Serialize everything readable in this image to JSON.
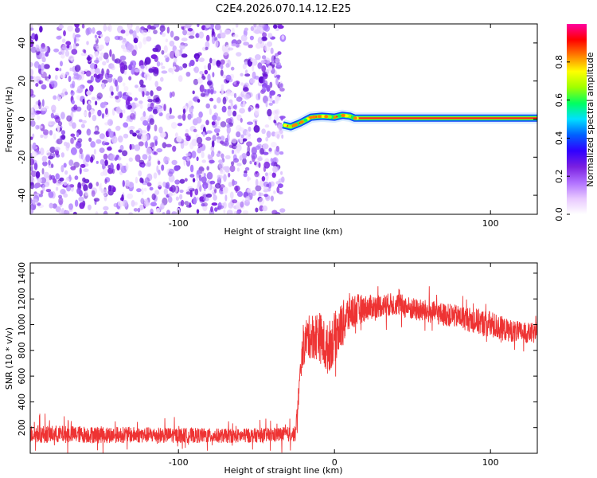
{
  "title": "C2E4.2026.070.14.12.E25",
  "chart_data": [
    {
      "type": "heatmap",
      "name": "spectrogram",
      "xlabel": "Height of straight line (km)",
      "ylabel": "Frequency (Hz)",
      "xlim": [
        -195,
        130
      ],
      "ylim": [
        -50,
        50
      ],
      "xticks": [
        -100,
        0,
        100
      ],
      "xtick_labels": [
        "-100",
        "",
        "100"
      ],
      "yticks": [
        -40,
        -20,
        0,
        20,
        40
      ],
      "ytick_labels": [
        "-40",
        "-20",
        "0",
        "20",
        "40"
      ],
      "noise_region_x": [
        -195,
        -33
      ],
      "signal_start_x": -33,
      "signal_line_freq": 0.5,
      "signal_line_points": [
        [
          -33,
          -3
        ],
        [
          -28,
          -4
        ],
        [
          -22,
          -2
        ],
        [
          -15,
          1
        ],
        [
          -8,
          1.5
        ],
        [
          0,
          1
        ],
        [
          5,
          2
        ],
        [
          10,
          1.5
        ],
        [
          13,
          0.5
        ],
        [
          130,
          0.5
        ]
      ],
      "colorbar": {
        "label": "Normalized spectral amplitude",
        "range": [
          0,
          1
        ],
        "ticks": [
          0.0,
          0.2,
          0.4,
          0.6,
          0.8
        ],
        "tick_labels": [
          "0.0",
          "0.2",
          "0.4",
          "0.6",
          "0.8"
        ],
        "colors": [
          "#ffffff",
          "#e8c8ff",
          "#b070ff",
          "#7a20e0",
          "#3000ff",
          "#0060ff",
          "#00e0ff",
          "#00ff60",
          "#a0ff00",
          "#ffff00",
          "#ff8000",
          "#ff0000",
          "#ff00a0"
        ]
      }
    },
    {
      "type": "line",
      "name": "snr",
      "xlabel": "Height of straight line (km)",
      "ylabel": "SNR (10 * v/v)",
      "xlim": [
        -195,
        130
      ],
      "ylim": [
        0,
        1480
      ],
      "xticks": [
        -100,
        0,
        100
      ],
      "xtick_labels": [
        "-100",
        "0",
        "100"
      ],
      "yticks": [
        200,
        400,
        600,
        800,
        1000,
        1200,
        1400
      ],
      "ytick_labels": [
        "200",
        "400",
        "600",
        "800",
        "1000",
        "1200",
        "1400"
      ],
      "color": "#ee3333",
      "envelope_x": [
        -195,
        -150,
        -100,
        -60,
        -25,
        -21,
        -18,
        -10,
        -5,
        0,
        5,
        10,
        20,
        30,
        40,
        50,
        60,
        70,
        80,
        90,
        100,
        110,
        120,
        130
      ],
      "envelope_mean": [
        150,
        145,
        140,
        135,
        150,
        750,
        900,
        920,
        800,
        900,
        1000,
        1100,
        1130,
        1150,
        1160,
        1120,
        1100,
        1080,
        1060,
        1030,
        1000,
        960,
        940,
        930
      ],
      "envelope_amp": [
        70,
        65,
        60,
        55,
        60,
        120,
        160,
        200,
        200,
        200,
        180,
        150,
        100,
        90,
        90,
        90,
        90,
        90,
        90,
        100,
        110,
        90,
        80,
        80
      ]
    }
  ]
}
